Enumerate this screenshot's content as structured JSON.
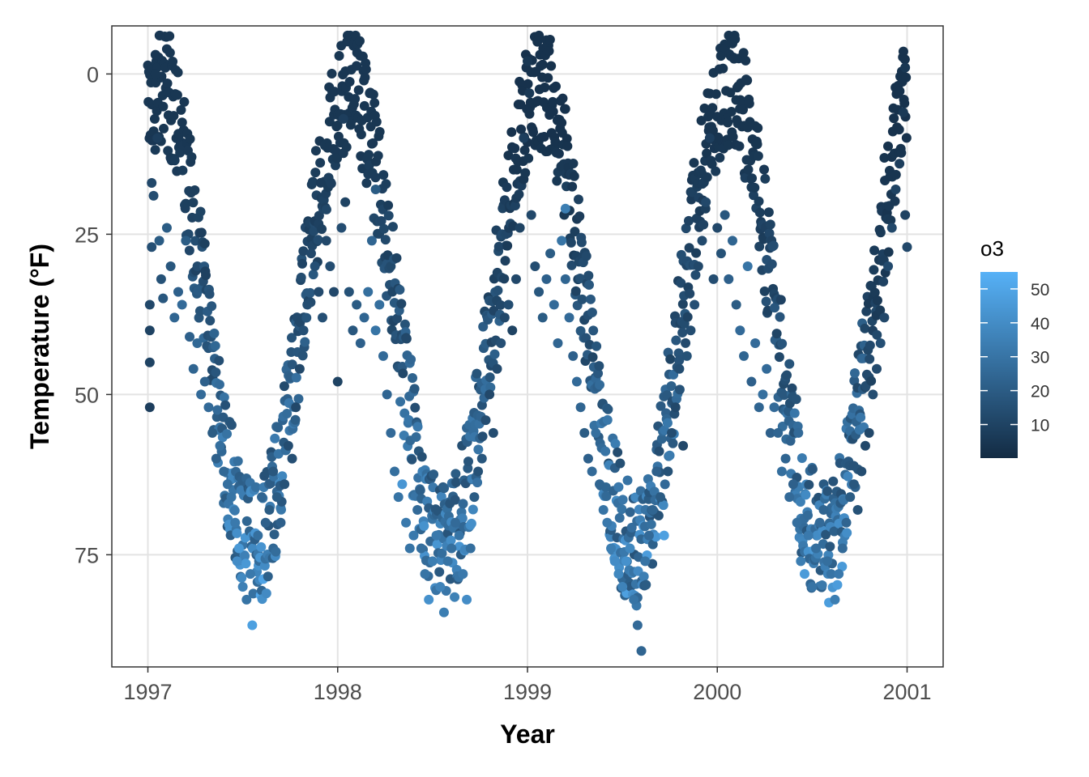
{
  "chart_data": {
    "type": "scatter",
    "xlabel": "Year",
    "ylabel": "Temperature (°F)",
    "x_ticks": [
      "1997",
      "1998",
      "1999",
      "2000",
      "2001"
    ],
    "y_ticks": [
      "0",
      "25",
      "50",
      "75"
    ],
    "xlim": [
      1996.81,
      2001.19
    ],
    "ylim": [
      92.5,
      -7.5
    ],
    "y_reversed": true,
    "grid": true,
    "color_scale": {
      "title": "o3",
      "range": [
        0.1,
        55
      ],
      "ticks": [
        "10",
        "20",
        "30",
        "40",
        "50"
      ],
      "low_color": "#132B43",
      "high_color": "#56B1F7"
    },
    "point_color": "mapped to o3",
    "points_by_season": [
      {
        "x_start": 1997.0,
        "x_end": 1997.78,
        "temp_low": -3,
        "temp_high": 86,
        "o3_range": [
          5,
          50
        ]
      },
      {
        "x_start": 1997.78,
        "x_end": 1998.78,
        "temp_low": -7,
        "temp_high": 85,
        "o3_range": [
          5,
          48
        ]
      },
      {
        "x_start": 1998.78,
        "x_end": 1999.78,
        "temp_low": -2,
        "temp_high": 90,
        "o3_range": [
          3,
          50
        ]
      },
      {
        "x_start": 1999.78,
        "x_end": 2000.78,
        "temp_low": -5,
        "temp_high": 82,
        "o3_range": [
          4,
          48
        ]
      },
      {
        "x_start": 2000.78,
        "x_end": 2001.0,
        "temp_low": -1,
        "temp_high": 67,
        "o3_range": [
          3,
          25
        ]
      }
    ],
    "points": [
      [
        1997.01,
        36,
        12
      ],
      [
        1997.01,
        45,
        10
      ],
      [
        1997.01,
        52,
        8
      ],
      [
        1997.01,
        40,
        10
      ],
      [
        1997.02,
        27,
        15
      ],
      [
        1997.02,
        17,
        12
      ],
      [
        1997.03,
        19,
        14
      ],
      [
        1997.04,
        0,
        5
      ],
      [
        1997.04,
        -3,
        5
      ],
      [
        1997.05,
        10,
        8
      ],
      [
        1997.06,
        26,
        20
      ],
      [
        1997.07,
        32,
        16
      ],
      [
        1997.08,
        35,
        18
      ],
      [
        1997.1,
        24,
        20
      ],
      [
        1997.12,
        30,
        18
      ],
      [
        1997.14,
        38,
        24
      ],
      [
        1997.16,
        34,
        22
      ],
      [
        1997.18,
        36,
        26
      ],
      [
        1997.2,
        26,
        20
      ],
      [
        1997.22,
        41,
        22
      ],
      [
        1997.24,
        46,
        24
      ],
      [
        1997.26,
        42,
        25
      ],
      [
        1997.28,
        50,
        26
      ],
      [
        1997.3,
        48,
        22
      ],
      [
        1997.32,
        52,
        26
      ],
      [
        1997.34,
        56,
        20
      ],
      [
        1997.36,
        60,
        22
      ],
      [
        1997.38,
        58,
        28
      ],
      [
        1997.4,
        62,
        25
      ],
      [
        1997.42,
        64,
        28
      ],
      [
        1997.44,
        66,
        30
      ],
      [
        1997.46,
        70,
        32
      ],
      [
        1997.47,
        76,
        40
      ],
      [
        1997.48,
        74,
        45
      ],
      [
        1997.5,
        80,
        35
      ],
      [
        1997.52,
        82,
        30
      ],
      [
        1997.54,
        78,
        32
      ],
      [
        1997.55,
        86,
        48
      ],
      [
        1997.58,
        72,
        28
      ],
      [
        1997.6,
        66,
        24
      ],
      [
        1997.62,
        70,
        22
      ],
      [
        1997.64,
        68,
        20
      ],
      [
        1997.66,
        62,
        18
      ],
      [
        1997.68,
        66,
        20
      ],
      [
        1997.7,
        70,
        22
      ],
      [
        1997.72,
        64,
        16
      ],
      [
        1997.74,
        58,
        14
      ],
      [
        1997.76,
        60,
        15
      ],
      [
        1997.78,
        52,
        12
      ],
      [
        1997.8,
        46,
        12
      ],
      [
        1997.82,
        40,
        15
      ],
      [
        1997.84,
        36,
        14
      ],
      [
        1997.86,
        28,
        12
      ],
      [
        1997.88,
        30,
        15
      ],
      [
        1997.9,
        34,
        13
      ],
      [
        1997.92,
        38,
        15
      ],
      [
        1997.94,
        26,
        12
      ],
      [
        1997.96,
        30,
        14
      ],
      [
        1997.98,
        34,
        12
      ],
      [
        1998.0,
        48,
        10
      ],
      [
        1998.02,
        24,
        14
      ],
      [
        1998.03,
        7,
        8
      ],
      [
        1998.04,
        20,
        10
      ],
      [
        1998.06,
        34,
        16
      ],
      [
        1998.08,
        40,
        18
      ],
      [
        1998.1,
        36,
        20
      ],
      [
        1998.12,
        42,
        22
      ],
      [
        1998.14,
        38,
        24
      ],
      [
        1998.16,
        34,
        28
      ],
      [
        1998.18,
        26,
        24
      ],
      [
        1998.2,
        40,
        30
      ],
      [
        1998.2,
        18,
        20
      ],
      [
        1998.22,
        36,
        28
      ],
      [
        1998.24,
        44,
        26
      ],
      [
        1998.26,
        50,
        24
      ],
      [
        1998.28,
        56,
        26
      ],
      [
        1998.3,
        62,
        28
      ],
      [
        1998.32,
        66,
        30
      ],
      [
        1998.34,
        64,
        44
      ],
      [
        1998.36,
        70,
        32
      ],
      [
        1998.38,
        74,
        30
      ],
      [
        1998.4,
        72,
        32
      ],
      [
        1998.42,
        68,
        26
      ],
      [
        1998.44,
        74,
        28
      ],
      [
        1998.46,
        78,
        30
      ],
      [
        1998.48,
        82,
        42
      ],
      [
        1998.5,
        76,
        34
      ],
      [
        1998.52,
        72,
        32
      ],
      [
        1998.54,
        80,
        36
      ],
      [
        1998.56,
        84,
        34
      ],
      [
        1998.58,
        76,
        30
      ],
      [
        1998.6,
        74,
        28
      ],
      [
        1998.62,
        70,
        26
      ],
      [
        1998.64,
        72,
        30
      ],
      [
        1998.66,
        78,
        32
      ],
      [
        1998.68,
        82,
        40
      ],
      [
        1998.7,
        74,
        28
      ],
      [
        1998.72,
        66,
        20
      ],
      [
        1998.74,
        62,
        16
      ],
      [
        1998.76,
        60,
        18
      ],
      [
        1998.78,
        54,
        14
      ],
      [
        1998.8,
        50,
        12
      ],
      [
        1998.82,
        56,
        14
      ],
      [
        1998.84,
        46,
        13
      ],
      [
        1998.86,
        42,
        15
      ],
      [
        1998.88,
        38,
        12
      ],
      [
        1998.9,
        36,
        14
      ],
      [
        1998.92,
        40,
        10
      ],
      [
        1998.94,
        32,
        12
      ],
      [
        1998.96,
        24,
        10
      ],
      [
        1998.98,
        10,
        8
      ],
      [
        1999.0,
        -2,
        5
      ],
      [
        1999.01,
        3,
        6
      ],
      [
        1999.02,
        22,
        12
      ],
      [
        1999.04,
        30,
        14
      ],
      [
        1999.06,
        34,
        18
      ],
      [
        1999.08,
        38,
        20
      ],
      [
        1999.1,
        32,
        22
      ],
      [
        1999.12,
        28,
        20
      ],
      [
        1999.14,
        36,
        26
      ],
      [
        1999.16,
        42,
        24
      ],
      [
        1999.18,
        26,
        30
      ],
      [
        1999.2,
        32,
        24
      ],
      [
        1999.2,
        21,
        34
      ],
      [
        1999.22,
        38,
        26
      ],
      [
        1999.24,
        44,
        22
      ],
      [
        1999.26,
        48,
        26
      ],
      [
        1999.28,
        52,
        24
      ],
      [
        1999.3,
        56,
        20
      ],
      [
        1999.32,
        60,
        22
      ],
      [
        1999.34,
        62,
        26
      ],
      [
        1999.36,
        56,
        28
      ],
      [
        1999.38,
        64,
        24
      ],
      [
        1999.4,
        68,
        30
      ],
      [
        1999.42,
        70,
        32
      ],
      [
        1999.44,
        74,
        34
      ],
      [
        1999.46,
        76,
        40
      ],
      [
        1999.48,
        78,
        38
      ],
      [
        1999.5,
        80,
        36
      ],
      [
        1999.52,
        76,
        42
      ],
      [
        1999.54,
        74,
        38
      ],
      [
        1999.56,
        82,
        30
      ],
      [
        1999.58,
        86,
        26
      ],
      [
        1999.6,
        90,
        24
      ],
      [
        1999.62,
        76,
        30
      ],
      [
        1999.64,
        72,
        26
      ],
      [
        1999.66,
        68,
        24
      ],
      [
        1999.68,
        62,
        22
      ],
      [
        1999.7,
        66,
        20
      ],
      [
        1999.72,
        72,
        48
      ],
      [
        1999.74,
        62,
        16
      ],
      [
        1999.76,
        56,
        14
      ],
      [
        1999.78,
        52,
        12
      ],
      [
        1999.8,
        46,
        14
      ],
      [
        1999.82,
        58,
        12
      ],
      [
        1999.84,
        44,
        16
      ],
      [
        1999.86,
        40,
        14
      ],
      [
        1999.88,
        36,
        15
      ],
      [
        1999.9,
        30,
        12
      ],
      [
        1999.92,
        26,
        13
      ],
      [
        1999.94,
        20,
        12
      ],
      [
        1999.96,
        10,
        8
      ],
      [
        1999.98,
        32,
        14
      ],
      [
        2000.0,
        24,
        12
      ],
      [
        2000.02,
        28,
        16
      ],
      [
        2000.04,
        22,
        18
      ],
      [
        2000.06,
        32,
        22
      ],
      [
        2000.08,
        26,
        24
      ],
      [
        2000.1,
        36,
        20
      ],
      [
        2000.12,
        40,
        26
      ],
      [
        2000.14,
        44,
        24
      ],
      [
        2000.16,
        30,
        30
      ],
      [
        2000.18,
        48,
        22
      ],
      [
        2000.2,
        42,
        26
      ],
      [
        2000.22,
        52,
        24
      ],
      [
        2000.24,
        50,
        28
      ],
      [
        2000.26,
        46,
        26
      ],
      [
        2000.28,
        56,
        22
      ],
      [
        2000.3,
        52,
        26
      ],
      [
        2000.32,
        56,
        24
      ],
      [
        2000.34,
        62,
        28
      ],
      [
        2000.36,
        60,
        24
      ],
      [
        2000.38,
        66,
        26
      ],
      [
        2000.4,
        64,
        22
      ],
      [
        2000.42,
        70,
        28
      ],
      [
        2000.44,
        76,
        34
      ],
      [
        2000.46,
        78,
        46
      ],
      [
        2000.48,
        72,
        32
      ],
      [
        2000.5,
        80,
        30
      ],
      [
        2000.52,
        74,
        28
      ],
      [
        2000.54,
        70,
        26
      ],
      [
        2000.56,
        68,
        24
      ],
      [
        2000.58,
        76,
        28
      ],
      [
        2000.6,
        78,
        30
      ],
      [
        2000.62,
        82,
        34
      ],
      [
        2000.64,
        78,
        32
      ],
      [
        2000.66,
        74,
        26
      ],
      [
        2000.68,
        70,
        24
      ],
      [
        2000.7,
        66,
        20
      ],
      [
        2000.72,
        64,
        18
      ],
      [
        2000.74,
        68,
        16
      ],
      [
        2000.76,
        62,
        14
      ],
      [
        2000.78,
        58,
        12
      ],
      [
        2000.8,
        56,
        12
      ],
      [
        2000.82,
        50,
        14
      ],
      [
        2000.84,
        46,
        13
      ],
      [
        2000.86,
        42,
        15
      ],
      [
        2000.88,
        38,
        12
      ],
      [
        2000.9,
        30,
        13
      ],
      [
        2000.92,
        24,
        12
      ],
      [
        2000.94,
        18,
        10
      ],
      [
        2000.96,
        14,
        8
      ],
      [
        2000.98,
        6,
        6
      ],
      [
        2000.99,
        22,
        10
      ],
      [
        2000.99,
        -1,
        5
      ],
      [
        2001.0,
        27,
        12
      ]
    ]
  }
}
